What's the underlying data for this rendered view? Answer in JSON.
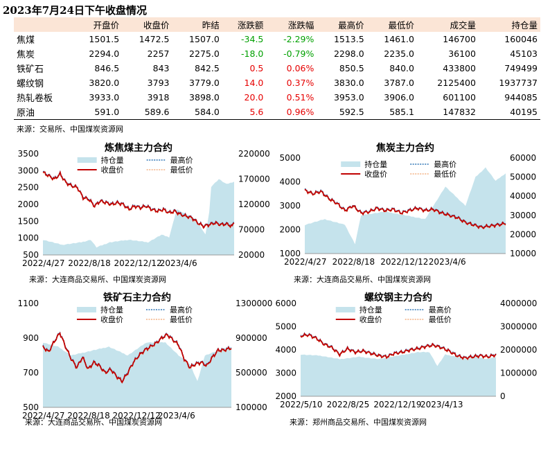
{
  "report_title": "2023年7月24日下午收盘情况",
  "table": {
    "headers": [
      "",
      "开盘价",
      "收盘价",
      "昨结",
      "涨跌额",
      "涨跌幅",
      "最高价",
      "最低价",
      "成交量",
      "持仓量"
    ],
    "rows": [
      [
        "焦煤",
        "1501.5",
        "1472.5",
        "1507.0",
        "-34.5",
        "-2.29%",
        "1513.5",
        "1461.0",
        "146700",
        "160046"
      ],
      [
        "焦炭",
        "2294.0",
        "2257",
        "2275.0",
        "-18.0",
        "-0.79%",
        "2298.0",
        "2235.0",
        "36100",
        "45103"
      ],
      [
        "铁矿石",
        "846.5",
        "843",
        "842.5",
        "0.5",
        "0.06%",
        "850.5",
        "840.0",
        "433800",
        "749499"
      ],
      [
        "螺纹钢",
        "3820.0",
        "3793",
        "3779.0",
        "14.0",
        "0.37%",
        "3830.0",
        "3787.0",
        "2125400",
        "1937737"
      ],
      [
        "热轧卷板",
        "3933.0",
        "3918",
        "3898.0",
        "20.0",
        "0.51%",
        "3953.0",
        "3906.0",
        "601100",
        "944085"
      ],
      [
        "原油",
        "591.0",
        "589.6",
        "584.0",
        "5.6",
        "0.96%",
        "592.5",
        "585.1",
        "147832",
        "40195"
      ]
    ]
  },
  "table_source": "来源：交易所、中国煤炭资源网",
  "colors": {
    "close": "#c00000",
    "high": "#2e75b6",
    "low": "#f4b183",
    "oi_area": "#c5e3ec",
    "up": "#e60000",
    "down": "#00a000"
  },
  "chart_data": [
    {
      "type": "line",
      "title": "炼焦煤主力合约",
      "x_ticks": [
        "2022/4/27",
        "2022/8/18",
        "2022/12/12",
        "2023/4/6"
      ],
      "ylim": [
        500,
        3500
      ],
      "y_ticks": [
        500,
        1000,
        1500,
        2000,
        2500,
        3000,
        3500
      ],
      "y2lim": [
        20000,
        220000
      ],
      "y2_ticks": [
        20000,
        70000,
        120000,
        170000,
        220000
      ],
      "legend": [
        "持仓量",
        "最高价",
        "收盘价",
        "最低价"
      ],
      "source": "来源：大连商品交易所、中国煤炭资源网",
      "price": [
        [
          0,
          2950
        ],
        [
          3,
          2850
        ],
        [
          6,
          2750
        ],
        [
          9,
          2900
        ],
        [
          12,
          2650
        ],
        [
          15,
          2550
        ],
        [
          18,
          2500
        ],
        [
          21,
          2200
        ],
        [
          24,
          2150
        ],
        [
          27,
          1950
        ],
        [
          30,
          2100
        ],
        [
          33,
          2050
        ],
        [
          36,
          2000
        ],
        [
          39,
          2050
        ],
        [
          42,
          2000
        ],
        [
          45,
          1850
        ],
        [
          48,
          1950
        ],
        [
          51,
          1900
        ],
        [
          54,
          1950
        ],
        [
          57,
          1850
        ],
        [
          60,
          1800
        ],
        [
          63,
          1850
        ],
        [
          66,
          1750
        ],
        [
          69,
          1800
        ],
        [
          72,
          1700
        ],
        [
          75,
          1650
        ],
        [
          78,
          1600
        ],
        [
          81,
          1450
        ],
        [
          84,
          1350
        ],
        [
          87,
          1400
        ],
        [
          90,
          1450
        ],
        [
          93,
          1400
        ],
        [
          96,
          1420
        ],
        [
          99,
          1350
        ],
        [
          100,
          1472
        ]
      ],
      "oi": [
        [
          0,
          50000
        ],
        [
          10,
          40000
        ],
        [
          20,
          45000
        ],
        [
          25,
          50000
        ],
        [
          28,
          35000
        ],
        [
          35,
          45000
        ],
        [
          45,
          50000
        ],
        [
          55,
          45000
        ],
        [
          62,
          60000
        ],
        [
          66,
          55000
        ],
        [
          70,
          110000
        ],
        [
          75,
          100000
        ],
        [
          80,
          90000
        ],
        [
          85,
          60000
        ],
        [
          87,
          105000
        ],
        [
          88,
          155000
        ],
        [
          92,
          170000
        ],
        [
          96,
          160000
        ],
        [
          100,
          165000
        ]
      ]
    },
    {
      "type": "line",
      "title": "焦炭主力合约",
      "x_ticks": [
        "2022/4/27",
        "2022/8/18",
        "2022/12/12",
        "2023/4/6"
      ],
      "ylim": [
        1000,
        5000
      ],
      "y_ticks": [
        1000,
        2000,
        3000,
        4000,
        5000
      ],
      "y2lim": [
        10000,
        60000
      ],
      "y2_ticks": [
        10000,
        20000,
        30000,
        40000,
        50000,
        60000
      ],
      "legend": [
        "持仓量",
        "最高价",
        "收盘价",
        "最低价"
      ],
      "source": "来源：大连商品交易所、中国煤炭资源网",
      "price": [
        [
          0,
          3650
        ],
        [
          4,
          3500
        ],
        [
          8,
          3600
        ],
        [
          12,
          3300
        ],
        [
          16,
          3100
        ],
        [
          20,
          2800
        ],
        [
          24,
          3000
        ],
        [
          28,
          2700
        ],
        [
          32,
          2750
        ],
        [
          36,
          2900
        ],
        [
          40,
          2800
        ],
        [
          44,
          2850
        ],
        [
          48,
          2700
        ],
        [
          52,
          2800
        ],
        [
          56,
          2900
        ],
        [
          60,
          2800
        ],
        [
          64,
          2850
        ],
        [
          68,
          2700
        ],
        [
          72,
          2600
        ],
        [
          76,
          2500
        ],
        [
          80,
          2300
        ],
        [
          84,
          2200
        ],
        [
          88,
          2100
        ],
        [
          92,
          2150
        ],
        [
          96,
          2200
        ],
        [
          100,
          2257
        ]
      ],
      "oi": [
        [
          0,
          25000
        ],
        [
          10,
          28000
        ],
        [
          20,
          25000
        ],
        [
          25,
          15000
        ],
        [
          28,
          30000
        ],
        [
          40,
          32000
        ],
        [
          50,
          30000
        ],
        [
          60,
          28000
        ],
        [
          64,
          35000
        ],
        [
          70,
          45000
        ],
        [
          75,
          40000
        ],
        [
          80,
          35000
        ],
        [
          85,
          50000
        ],
        [
          90,
          55000
        ],
        [
          95,
          48000
        ],
        [
          100,
          52000
        ]
      ]
    },
    {
      "type": "line",
      "title": "铁矿石主力合约",
      "x_ticks": [
        "2022/4/27",
        "2022/8/18",
        "2022/12/12",
        "2023/4/6"
      ],
      "ylim": [
        500,
        1100
      ],
      "y_ticks": [
        500,
        700,
        900,
        1100
      ],
      "y2lim": [
        100000,
        1300000
      ],
      "y2_ticks": [
        100000,
        500000,
        900000,
        1300000
      ],
      "legend": [
        "持仓量",
        "最高价",
        "收盘价",
        "最低价"
      ],
      "source": "来源：大连商品交易所、中国煤炭资源网",
      "price": [
        [
          0,
          850
        ],
        [
          3,
          820
        ],
        [
          6,
          880
        ],
        [
          9,
          930
        ],
        [
          12,
          850
        ],
        [
          15,
          780
        ],
        [
          18,
          730
        ],
        [
          21,
          790
        ],
        [
          24,
          720
        ],
        [
          27,
          760
        ],
        [
          30,
          740
        ],
        [
          33,
          700
        ],
        [
          36,
          720
        ],
        [
          39,
          680
        ],
        [
          42,
          650
        ],
        [
          45,
          700
        ],
        [
          48,
          760
        ],
        [
          51,
          800
        ],
        [
          54,
          830
        ],
        [
          57,
          850
        ],
        [
          60,
          870
        ],
        [
          63,
          900
        ],
        [
          66,
          920
        ],
        [
          69,
          890
        ],
        [
          72,
          860
        ],
        [
          75,
          780
        ],
        [
          78,
          730
        ],
        [
          81,
          750
        ],
        [
          84,
          760
        ],
        [
          87,
          740
        ],
        [
          90,
          790
        ],
        [
          93,
          830
        ],
        [
          96,
          830
        ],
        [
          99,
          840
        ],
        [
          100,
          843
        ]
      ],
      "oi": [
        [
          0,
          850000
        ],
        [
          8,
          800000
        ],
        [
          15,
          700000
        ],
        [
          25,
          750000
        ],
        [
          35,
          800000
        ],
        [
          45,
          700000
        ],
        [
          55,
          850000
        ],
        [
          65,
          850000
        ],
        [
          72,
          700000
        ],
        [
          78,
          600000
        ],
        [
          82,
          400000
        ],
        [
          86,
          700000
        ],
        [
          92,
          750000
        ],
        [
          100,
          800000
        ]
      ]
    },
    {
      "type": "line",
      "title": "螺纹钢主力合约",
      "x_ticks": [
        "2022/5/10",
        "2022/8/25",
        "2022/12/19",
        "2023/4/13"
      ],
      "ylim": [
        2000,
        6000
      ],
      "y_ticks": [
        2000,
        3000,
        4000,
        5000,
        6000
      ],
      "y2lim": [
        0,
        4000000
      ],
      "y2_ticks": [
        0,
        1000000,
        2000000,
        3000000,
        4000000
      ],
      "legend": [
        "持仓量",
        "最高价",
        "收盘价",
        "最低价"
      ],
      "source": "来源：郑州商品交易所、中国煤炭资源网",
      "price": [
        [
          0,
          4600
        ],
        [
          4,
          4650
        ],
        [
          8,
          4500
        ],
        [
          12,
          4250
        ],
        [
          16,
          4100
        ],
        [
          20,
          3800
        ],
        [
          24,
          4050
        ],
        [
          28,
          3900
        ],
        [
          32,
          3950
        ],
        [
          36,
          3850
        ],
        [
          40,
          3750
        ],
        [
          44,
          3700
        ],
        [
          48,
          3850
        ],
        [
          52,
          3900
        ],
        [
          56,
          4000
        ],
        [
          60,
          4050
        ],
        [
          64,
          4150
        ],
        [
          68,
          4200
        ],
        [
          72,
          4100
        ],
        [
          76,
          3950
        ],
        [
          80,
          3750
        ],
        [
          84,
          3650
        ],
        [
          88,
          3700
        ],
        [
          92,
          3750
        ],
        [
          96,
          3700
        ],
        [
          100,
          3793
        ]
      ],
      "oi": [
        [
          0,
          1800000
        ],
        [
          10,
          1750000
        ],
        [
          20,
          1600000
        ],
        [
          30,
          1700000
        ],
        [
          40,
          1600000
        ],
        [
          50,
          1750000
        ],
        [
          60,
          1900000
        ],
        [
          66,
          1900000
        ],
        [
          70,
          1300000
        ],
        [
          74,
          1800000
        ],
        [
          80,
          1700000
        ],
        [
          85,
          1600000
        ],
        [
          90,
          1700000
        ],
        [
          95,
          1600000
        ],
        [
          100,
          1700000
        ]
      ]
    }
  ]
}
